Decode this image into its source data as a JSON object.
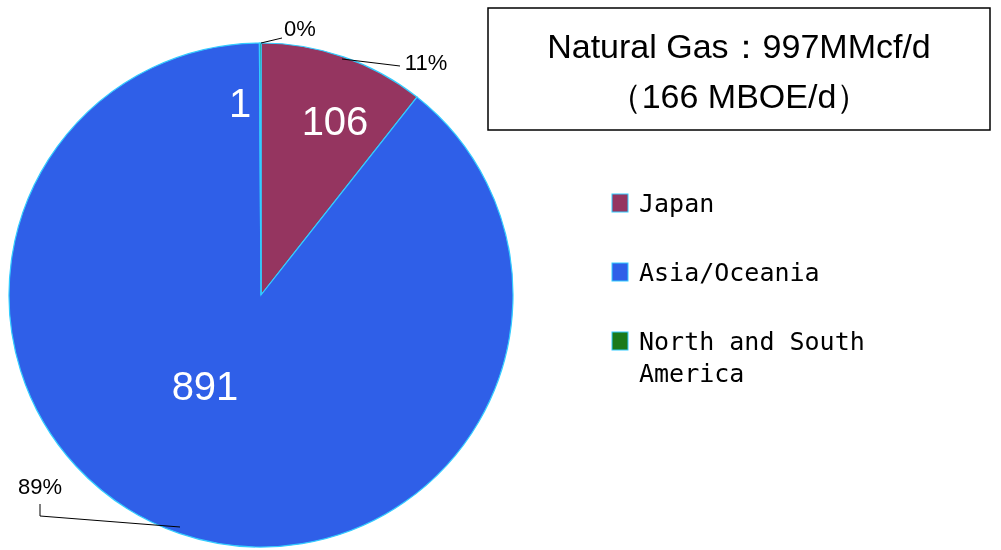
{
  "chart_data": {
    "type": "pie",
    "title": "Natural Gas：997MMcf/d",
    "subtitle": "（166 MBOE/d）",
    "categories": [
      "Japan",
      "Asia/Oceania",
      "North and South America"
    ],
    "values": [
      106,
      891,
      1
    ],
    "colors": [
      "#953560",
      "#2f5fe8",
      "#1a7a1a"
    ],
    "data_labels": true,
    "annotations": [
      "11%",
      "89%",
      "0%"
    ],
    "legend": "right"
  }
}
